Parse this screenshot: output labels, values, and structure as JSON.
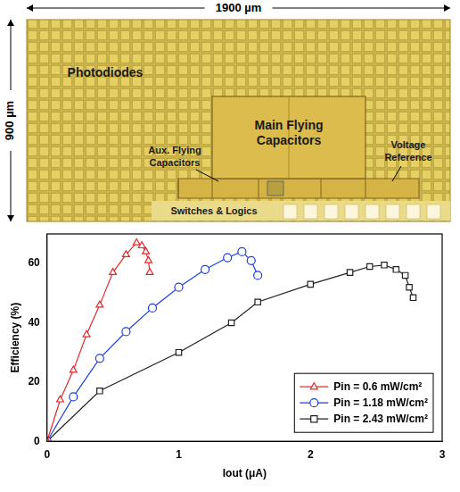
{
  "die_photo": {
    "width": "1900 µm",
    "height": "900 µm",
    "labels": [
      "Photodiodes",
      "Main Flying Capacitors",
      "Aux. Flying Capacitors",
      "Voltage Reference",
      "Switches & Logics"
    ]
  },
  "chart_data": {
    "type": "line",
    "x_label": "Iout (μA)",
    "y_label": "Efficiency (%)",
    "xlim": [
      0,
      3
    ],
    "xticks": [
      0,
      1,
      2,
      3
    ],
    "ylim": [
      0,
      70
    ],
    "yticks": [
      0,
      20,
      40,
      60
    ],
    "grid": false,
    "legend": "lower right",
    "series": [
      {
        "name": "Pin = 0.6 mW/cm²",
        "color": "#e8262a",
        "marker": "triangle",
        "line_style": "solid",
        "x": [
          0,
          0.1,
          0.2,
          0.3,
          0.4,
          0.5,
          0.6,
          0.68,
          0.72,
          0.75,
          0.77,
          0.78
        ],
        "values": [
          0,
          14,
          24,
          36,
          46,
          57,
          63,
          67,
          66,
          64,
          61,
          57
        ]
      },
      {
        "name": "Pin = 1.18 mW/cm²",
        "color": "#1a3fe0",
        "marker": "circle",
        "line_style": "solid",
        "x": [
          0,
          0.2,
          0.4,
          0.6,
          0.8,
          1.0,
          1.2,
          1.37,
          1.48,
          1.55,
          1.6
        ],
        "values": [
          0,
          15,
          28,
          37,
          45,
          52,
          58,
          62,
          64,
          61,
          56
        ]
      },
      {
        "name": "Pin = 2.43 mW/cm²",
        "color": "#222222",
        "marker": "square",
        "line_style": "solid",
        "x": [
          0,
          0.4,
          1.0,
          1.4,
          1.6,
          2.0,
          2.3,
          2.45,
          2.56,
          2.65,
          2.72,
          2.75,
          2.78
        ],
        "values": [
          0,
          17,
          30,
          40,
          47,
          53,
          57,
          59,
          59.5,
          58,
          56,
          52,
          48.5
        ]
      }
    ]
  }
}
